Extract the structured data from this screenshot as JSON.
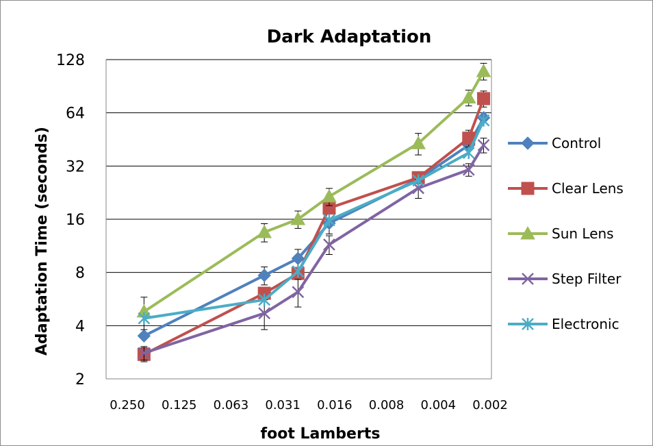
{
  "chart_data": {
    "type": "line",
    "title": "Dark Adaptation",
    "xlabel": "foot Lamberts",
    "ylabel": "Adaptation Time (seconds)",
    "x_scale": "log2",
    "x_reversed": true,
    "x_ticks": [
      0.25,
      0.125,
      0.0625,
      0.03125,
      0.015625,
      0.0078125,
      0.00390625,
      0.001953125
    ],
    "x_tick_labels": [
      "0.250",
      "0.125",
      "0.063",
      "0.031",
      "0.016",
      "0.008",
      "0.004",
      "0.002"
    ],
    "y_scale": "log2",
    "ylim": [
      2,
      128
    ],
    "y_ticks": [
      2,
      4,
      8,
      16,
      32,
      64,
      128
    ],
    "y_tick_labels": [
      "2",
      "4",
      "8",
      "16",
      "32",
      "64",
      "128"
    ],
    "grid": "horizontal",
    "legend_position": "right",
    "x": [
      0.2,
      0.04,
      0.0255,
      0.0168,
      0.0051,
      0.0026,
      0.00213
    ],
    "series": [
      {
        "name": "Control",
        "color": "#4f81bd",
        "marker": "diamond",
        "values": [
          3.5,
          7.7,
          9.6,
          15.2,
          27.0,
          42.0,
          60.0
        ],
        "errors": [
          0,
          0.9,
          1.2,
          2.0,
          0,
          0,
          0
        ]
      },
      {
        "name": "Clear Lens",
        "color": "#c0504d",
        "marker": "square",
        "values": [
          2.75,
          6.1,
          7.9,
          18.5,
          27.5,
          46.0,
          77.0
        ],
        "errors": [
          0.25,
          0,
          0,
          0,
          0,
          5,
          8
        ]
      },
      {
        "name": "Sun Lens",
        "color": "#9bbb59",
        "marker": "triangle",
        "values": [
          4.8,
          13.5,
          16.0,
          21.5,
          43.0,
          78.0,
          110.0
        ],
        "errors": [
          1.0,
          1.6,
          1.8,
          2.4,
          6,
          8,
          12
        ]
      },
      {
        "name": "Step Filter",
        "color": "#8064a2",
        "marker": "x",
        "values": [
          2.8,
          4.7,
          6.2,
          11.5,
          24.0,
          30.5,
          42.0
        ],
        "errors": [
          0.25,
          0.9,
          1.1,
          1.4,
          3,
          2.5,
          4
        ]
      },
      {
        "name": "Electronic",
        "color": "#4bacc6",
        "marker": "star",
        "values": [
          4.4,
          5.6,
          8.1,
          15.8,
          26.5,
          38.0,
          58.0
        ],
        "errors": [
          0,
          0,
          0,
          0,
          0,
          0,
          0
        ]
      }
    ]
  }
}
